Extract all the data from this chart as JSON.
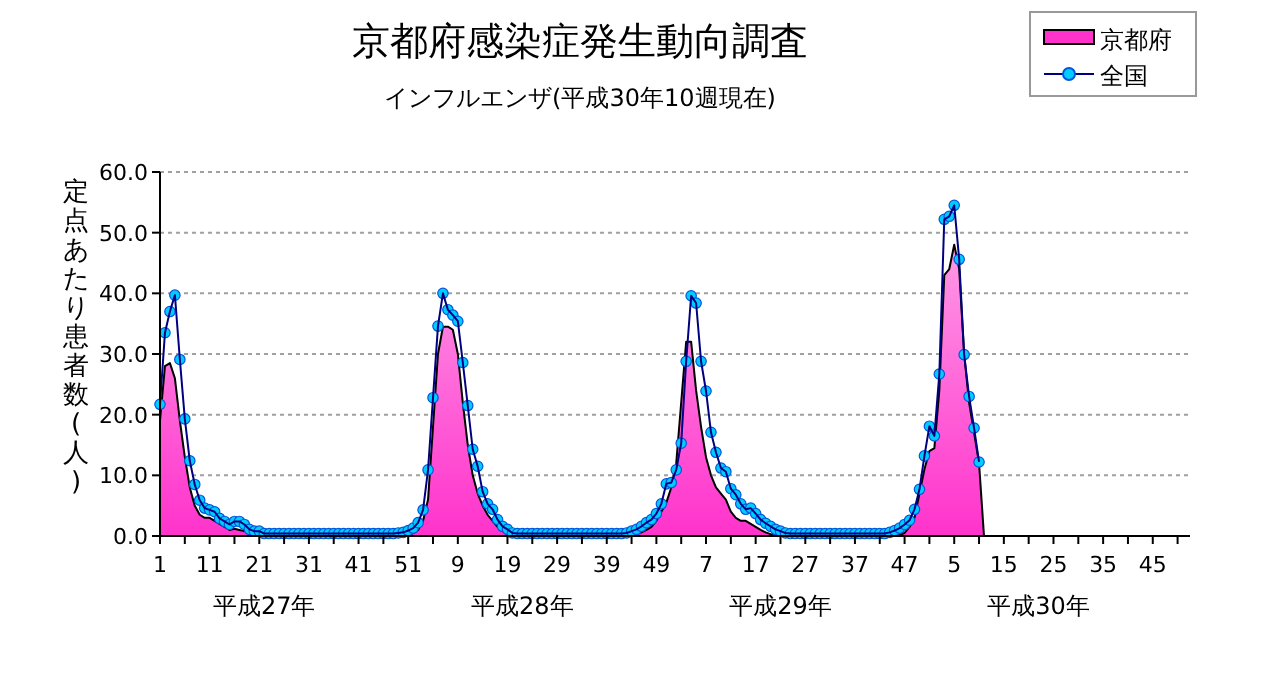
{
  "chart_data": {
    "type": "area",
    "title": "京都府感染症発生動向調査",
    "subtitle": "インフルエンザ(平成30年10週現在)",
    "ylabel": "定点あたり患者数(人)",
    "annotations": [
      "平成27年",
      "平成28年",
      "平成29年",
      "平成30年"
    ],
    "categories": [
      "1",
      null,
      null,
      null,
      null,
      null,
      null,
      null,
      null,
      null,
      "11",
      null,
      null,
      null,
      null,
      null,
      null,
      null,
      null,
      null,
      "21",
      null,
      null,
      null,
      null,
      null,
      null,
      null,
      null,
      null,
      "31",
      null,
      null,
      null,
      null,
      null,
      null,
      null,
      null,
      null,
      "41",
      null,
      null,
      null,
      null,
      null,
      null,
      null,
      null,
      null,
      "51",
      null,
      null,
      null,
      null,
      null,
      null,
      null,
      null,
      null,
      "9",
      null,
      null,
      null,
      null,
      null,
      null,
      null,
      null,
      null,
      "19",
      null,
      null,
      null,
      null,
      null,
      null,
      null,
      null,
      null,
      "29",
      null,
      null,
      null,
      null,
      null,
      null,
      null,
      null,
      null,
      "39",
      null,
      null,
      null,
      null,
      null,
      null,
      null,
      null,
      null,
      "49",
      null,
      null,
      null,
      null,
      null,
      null,
      null,
      null,
      null,
      "7",
      null,
      null,
      null,
      null,
      null,
      null,
      null,
      null,
      null,
      "17",
      null,
      null,
      null,
      null,
      null,
      null,
      null,
      null,
      null,
      "27",
      null,
      null,
      null,
      null,
      null,
      null,
      null,
      null,
      null,
      "37",
      null,
      null,
      null,
      null,
      null,
      null,
      null,
      null,
      null,
      "47",
      null,
      null,
      null,
      null,
      null,
      null,
      null,
      null,
      null,
      "5",
      null,
      null,
      null,
      null,
      null,
      null,
      null,
      null,
      null,
      "15",
      null,
      null,
      null,
      null,
      null,
      null,
      null,
      null,
      null,
      "25",
      null,
      null,
      null,
      null,
      null,
      null,
      null,
      null,
      null,
      "35",
      null,
      null,
      null,
      null,
      null,
      null,
      null,
      null,
      null,
      "45",
      null,
      null,
      null,
      null,
      null,
      null,
      null
    ],
    "series": [
      {
        "name": "京都府",
        "color": "#ff33cc",
        "values": [
          19.0,
          28.0,
          28.5,
          26.0,
          19.0,
          13.0,
          8.0,
          5.0,
          3.5,
          3.0,
          3.0,
          2.5,
          2.0,
          1.5,
          1.0,
          1.2,
          1.0,
          0.8,
          0.5,
          0.3,
          0.2,
          0,
          0,
          0,
          0,
          0,
          0,
          0,
          0,
          0,
          0,
          0,
          0,
          0,
          0,
          0,
          0,
          0,
          0,
          0,
          0,
          0,
          0,
          0,
          0,
          0,
          0,
          0,
          0,
          0,
          0.2,
          0.5,
          1.0,
          2.5,
          6.0,
          18.0,
          30.0,
          34.5,
          34.5,
          34.0,
          30.0,
          22.0,
          15.0,
          10.0,
          7.0,
          5.0,
          3.5,
          2.5,
          1.5,
          0.8,
          0.4,
          0.2,
          0,
          0,
          0,
          0,
          0,
          0,
          0,
          0,
          0,
          0,
          0,
          0,
          0,
          0,
          0,
          0,
          0,
          0,
          0,
          0,
          0,
          0,
          0,
          0,
          0.3,
          0.6,
          1.0,
          1.5,
          2.5,
          4.0,
          5.5,
          8.0,
          12.0,
          22.0,
          32.0,
          32.0,
          24.0,
          18.0,
          13.0,
          10.0,
          8.0,
          7.0,
          6.0,
          4.0,
          3.0,
          2.5,
          2.5,
          2.0,
          1.5,
          1.0,
          0.6,
          0.3,
          0,
          0,
          0,
          0,
          0,
          0,
          0,
          0,
          0,
          0,
          0,
          0,
          0,
          0,
          0,
          0,
          0,
          0,
          0,
          0,
          0,
          0,
          0,
          0,
          0,
          0.2,
          0.5,
          1.5,
          3.0,
          7.0,
          11.0,
          14.0,
          14.5,
          24.0,
          43.0,
          44.0,
          48.0,
          44.0,
          30.0,
          22.0,
          17.0,
          12.0,
          0,
          null,
          null,
          null,
          null,
          null,
          null,
          null,
          null,
          null,
          null,
          null,
          null,
          null,
          null,
          null,
          null,
          null,
          null,
          null,
          null,
          null,
          null,
          null,
          null,
          null,
          null,
          null,
          null,
          null,
          null,
          null,
          null,
          null,
          null,
          null,
          null,
          null,
          null,
          null,
          null,
          null
        ]
      },
      {
        "name": "全国",
        "type": "line",
        "color": "#00ccff",
        "marker": "circle",
        "values": [
          21.7,
          33.5,
          37.0,
          39.7,
          29.1,
          19.3,
          12.4,
          8.5,
          5.9,
          4.6,
          4.3,
          4.0,
          2.9,
          2.4,
          1.9,
          2.4,
          2.4,
          1.9,
          1.1,
          0.8,
          0.8,
          0.4,
          0.4,
          0.4,
          0.4,
          0.4,
          0.4,
          0.4,
          0.4,
          0.4,
          0.4,
          0.4,
          0.4,
          0.4,
          0.4,
          0.4,
          0.4,
          0.4,
          0.4,
          0.4,
          0.4,
          0.4,
          0.4,
          0.4,
          0.4,
          0.4,
          0.4,
          0.4,
          0.5,
          0.6,
          0.9,
          1.3,
          2.2,
          4.3,
          10.9,
          22.8,
          34.6,
          40.0,
          37.3,
          36.4,
          35.4,
          28.6,
          21.5,
          14.3,
          11.5,
          7.3,
          5.3,
          4.4,
          2.7,
          1.6,
          1.1,
          0.5,
          0.4,
          0.4,
          0.4,
          0.4,
          0.4,
          0.4,
          0.4,
          0.4,
          0.4,
          0.4,
          0.4,
          0.4,
          0.4,
          0.4,
          0.4,
          0.4,
          0.4,
          0.4,
          0.4,
          0.4,
          0.4,
          0.4,
          0.5,
          0.8,
          1.1,
          1.6,
          2.2,
          2.7,
          3.7,
          5.3,
          8.6,
          8.8,
          10.9,
          15.3,
          28.8,
          39.6,
          38.4,
          28.8,
          23.9,
          17.1,
          13.8,
          11.2,
          10.6,
          7.8,
          6.8,
          5.3,
          4.4,
          4.6,
          3.7,
          2.7,
          2.1,
          1.6,
          1.1,
          0.8,
          0.5,
          0.4,
          0.4,
          0.4,
          0.4,
          0.4,
          0.4,
          0.4,
          0.4,
          0.4,
          0.4,
          0.4,
          0.4,
          0.4,
          0.4,
          0.4,
          0.4,
          0.4,
          0.4,
          0.4,
          0.4,
          0.6,
          0.9,
          1.3,
          1.9,
          2.6,
          4.4,
          7.7,
          13.2,
          18.1,
          16.5,
          26.7,
          52.2,
          52.7,
          54.5,
          45.6,
          29.9,
          23.0,
          17.8,
          12.2,
          null,
          null,
          null,
          null,
          null,
          null,
          null,
          null,
          null,
          null,
          null,
          null,
          null,
          null,
          null,
          null,
          null,
          null,
          null,
          null,
          null,
          null,
          null,
          null,
          null,
          null,
          null,
          null,
          null,
          null,
          null,
          null,
          null,
          null,
          null,
          null,
          null,
          null,
          null,
          null,
          null,
          null
        ]
      }
    ],
    "ylim": [
      0,
      60
    ],
    "yticks": [
      {
        "value": 0,
        "label": "0.0"
      },
      {
        "value": 10,
        "label": "10.0"
      },
      {
        "value": 20,
        "label": "20.0"
      },
      {
        "value": 30,
        "label": "30.0"
      },
      {
        "value": 40,
        "label": "40.0"
      },
      {
        "value": 50,
        "label": "50.0"
      },
      {
        "value": 60,
        "label": "60.0"
      }
    ],
    "grid": "y",
    "legend": "top right"
  }
}
